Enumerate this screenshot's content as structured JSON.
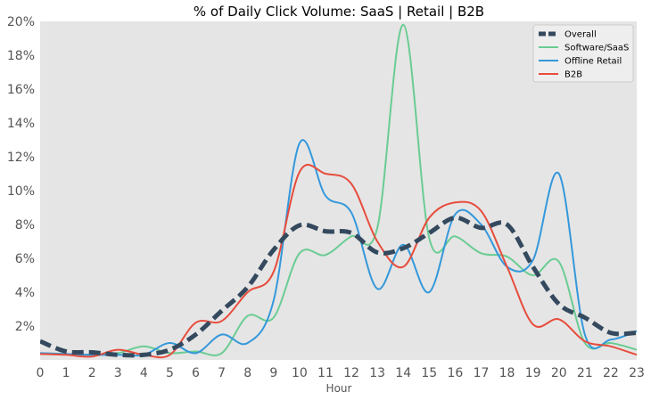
{
  "chart_data": {
    "type": "line",
    "title": "% of Daily Click Volume: SaaS | Retail | B2B",
    "xlabel": "Hour",
    "ylabel": "",
    "x": [
      0,
      1,
      2,
      3,
      4,
      5,
      6,
      7,
      8,
      9,
      10,
      11,
      12,
      13,
      14,
      15,
      16,
      17,
      18,
      19,
      20,
      21,
      22,
      23
    ],
    "xlim": [
      0,
      23
    ],
    "ylim": [
      0,
      20
    ],
    "y_ticks": [
      2,
      4,
      6,
      8,
      10,
      12,
      14,
      16,
      18,
      20
    ],
    "y_tick_format": "percent",
    "grid": false,
    "legend_position": "top-right",
    "background": "#e5e5e5",
    "series": [
      {
        "name": "Overall",
        "color": "#34495e",
        "style": "dashed",
        "values": [
          1.1,
          0.5,
          0.45,
          0.3,
          0.3,
          0.6,
          1.5,
          2.9,
          4.3,
          6.5,
          7.95,
          7.6,
          7.5,
          6.35,
          6.6,
          7.5,
          8.4,
          7.8,
          8.0,
          5.5,
          3.3,
          2.5,
          1.6,
          1.6
        ]
      },
      {
        "name": "Software/SaaS",
        "color": "#6acc93",
        "style": "solid",
        "values": [
          0.4,
          0.35,
          0.3,
          0.4,
          0.8,
          0.4,
          0.5,
          0.4,
          2.6,
          2.5,
          6.3,
          6.2,
          7.3,
          7.8,
          19.8,
          7.2,
          7.3,
          6.3,
          6.1,
          5.0,
          5.8,
          1.0,
          1.0,
          0.6
        ]
      },
      {
        "name": "Offline Retail",
        "color": "#3498db",
        "style": "solid",
        "values": [
          0.4,
          0.35,
          0.3,
          0.3,
          0.3,
          1.0,
          0.4,
          1.5,
          1.0,
          3.5,
          12.8,
          9.7,
          8.7,
          4.2,
          6.8,
          4.0,
          8.6,
          8.0,
          5.5,
          5.9,
          11.0,
          1.5,
          1.2,
          1.7
        ]
      },
      {
        "name": "B2B",
        "color": "#e74c3c",
        "style": "solid",
        "values": [
          0.35,
          0.3,
          0.2,
          0.6,
          0.3,
          0.3,
          2.2,
          2.3,
          4.0,
          5.2,
          11.1,
          11.0,
          10.4,
          7.0,
          5.5,
          8.4,
          9.3,
          8.8,
          5.5,
          2.1,
          2.4,
          1.1,
          0.8,
          0.3
        ]
      }
    ]
  }
}
